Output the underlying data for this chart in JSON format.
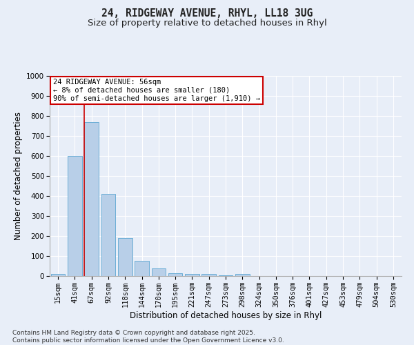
{
  "title_line1": "24, RIDGEWAY AVENUE, RHYL, LL18 3UG",
  "title_line2": "Size of property relative to detached houses in Rhyl",
  "xlabel": "Distribution of detached houses by size in Rhyl",
  "ylabel": "Number of detached properties",
  "categories": [
    "15sqm",
    "41sqm",
    "67sqm",
    "92sqm",
    "118sqm",
    "144sqm",
    "170sqm",
    "195sqm",
    "221sqm",
    "247sqm",
    "273sqm",
    "298sqm",
    "324sqm",
    "350sqm",
    "376sqm",
    "401sqm",
    "427sqm",
    "453sqm",
    "479sqm",
    "504sqm",
    "530sqm"
  ],
  "values": [
    10,
    600,
    770,
    410,
    190,
    75,
    37,
    15,
    10,
    10,
    5,
    10,
    0,
    0,
    0,
    0,
    0,
    0,
    0,
    0,
    0
  ],
  "bar_color": "#b8cfe8",
  "bar_edge_color": "#6baed6",
  "bar_width": 0.85,
  "ylim": [
    0,
    1000
  ],
  "yticks": [
    0,
    100,
    200,
    300,
    400,
    500,
    600,
    700,
    800,
    900,
    1000
  ],
  "vline_x_index": 1.55,
  "vline_color": "#cc0000",
  "annotation_line1": "24 RIDGEWAY AVENUE: 56sqm",
  "annotation_line2": "← 8% of detached houses are smaller (180)",
  "annotation_line3": "90% of semi-detached houses are larger (1,910) →",
  "annotation_box_color": "#cc0000",
  "annotation_box_fill": "#ffffff",
  "background_color": "#e8eef8",
  "grid_color": "#ffffff",
  "footnote": "Contains HM Land Registry data © Crown copyright and database right 2025.\nContains public sector information licensed under the Open Government Licence v3.0.",
  "title_fontsize": 10.5,
  "subtitle_fontsize": 9.5,
  "axis_label_fontsize": 8.5,
  "tick_fontsize": 7.5,
  "annotation_fontsize": 7.5,
  "footnote_fontsize": 6.5
}
